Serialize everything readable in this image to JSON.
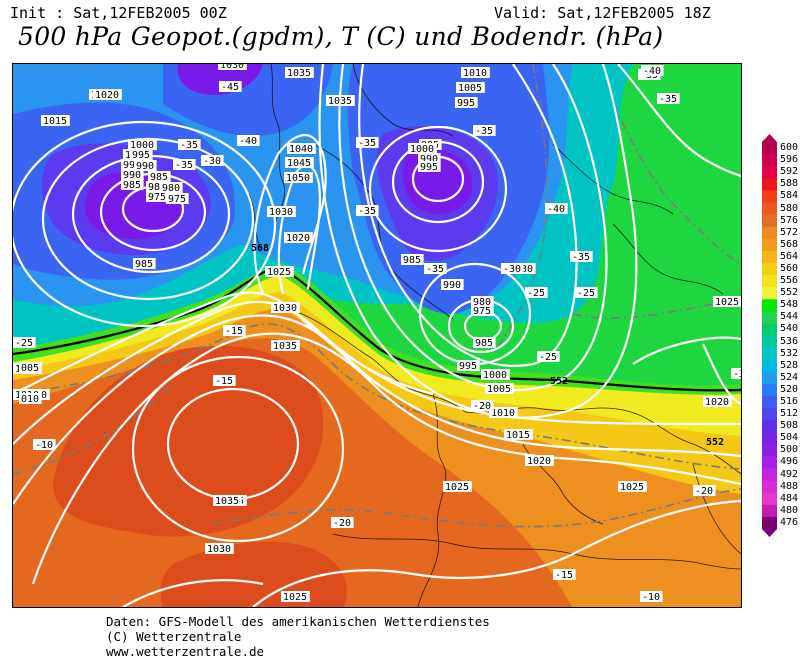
{
  "header": {
    "init": "Init : Sat,12FEB2005 00Z",
    "valid": "Valid: Sat,12FEB2005 18Z",
    "title": "500 hPa Geopot.(gpdm), T (C) und Bodendr. (hPa)"
  },
  "legend": {
    "values": [
      600,
      596,
      592,
      588,
      584,
      580,
      576,
      572,
      568,
      564,
      560,
      556,
      552,
      548,
      544,
      540,
      536,
      532,
      528,
      524,
      520,
      516,
      512,
      508,
      504,
      500,
      496,
      492,
      488,
      484,
      480,
      476
    ],
    "colors": [
      "#b8004f",
      "#d1004e",
      "#e5004a",
      "#f0141e",
      "#f2401c",
      "#ea5a20",
      "#e46d25",
      "#ee8a22",
      "#f29a1e",
      "#f5b418",
      "#f7cc14",
      "#f6e21c",
      "#f2f234",
      "#00e800",
      "#20d450",
      "#00cc6c",
      "#00c8a0",
      "#00c8c8",
      "#00b8e4",
      "#1e9ef0",
      "#2a7df5",
      "#3c5ef5",
      "#4e44f0",
      "#5f30eb",
      "#7624e8",
      "#8c1ee6",
      "#a81ee6",
      "#c224e0",
      "#d92cd8",
      "#ea36cc",
      "#c21cb0",
      "#7a006e"
    ]
  },
  "map": {
    "colors": {
      "violet": "#7a1ae8",
      "indigo": "#5c3af0",
      "blue": "#3a64f2",
      "lightblue": "#2a94f0",
      "cyan": "#00c4c4",
      "teal": "#12c884",
      "green": "#1ed640",
      "lime": "#3ee020",
      "yellow": "#f2ea20",
      "gold": "#f5c818",
      "orange": "#ee9020",
      "darkorange": "#e46820",
      "red": "#dc4c1c",
      "contour": "#ffffff",
      "temp_contour": "#7a7a7a",
      "boundary": "#000000"
    },
    "pressure_labels": [
      "1030",
      "1035",
      "1010",
      "1005",
      "995",
      "1020",
      "1035",
      "1015",
      "1000",
      "995",
      "990",
      "985",
      "980",
      "975",
      "1040",
      "1045",
      "1050",
      "1030",
      "1020",
      "1025",
      "1030",
      "1035",
      "985",
      "990",
      "995",
      "1000",
      "985",
      "990",
      "980",
      "975",
      "985",
      "995",
      "1000",
      "1005",
      "1010",
      "1015",
      "1020",
      "1025",
      "1020",
      "1035",
      "1030",
      "1025",
      "1025",
      "1020",
      "1025",
      "1035",
      "1010",
      "1005",
      "1010",
      "985",
      "975",
      "980",
      "985",
      "990",
      "995",
      "1000",
      "005",
      "010"
    ],
    "temperature_labels": [
      "-45",
      "-35",
      "-40",
      "-30",
      "-35",
      "-35",
      "-35",
      "-40",
      "-35",
      "-30",
      "-25",
      "-25",
      "-20",
      "-25",
      "-30",
      "-25",
      "-20",
      "-15",
      "-15",
      "-10",
      "-20",
      "-15",
      "-10",
      "-35",
      "-40",
      "-35",
      "-35",
      "-35",
      "-30"
    ],
    "geopotential_labels": [
      "568",
      "552",
      "552"
    ]
  },
  "footer": {
    "line1": "Daten: GFS-Modell des amerikanischen Wetterdienstes",
    "line2": "(C) Wetterzentrale",
    "line3": "www.wetterzentrale.de"
  }
}
